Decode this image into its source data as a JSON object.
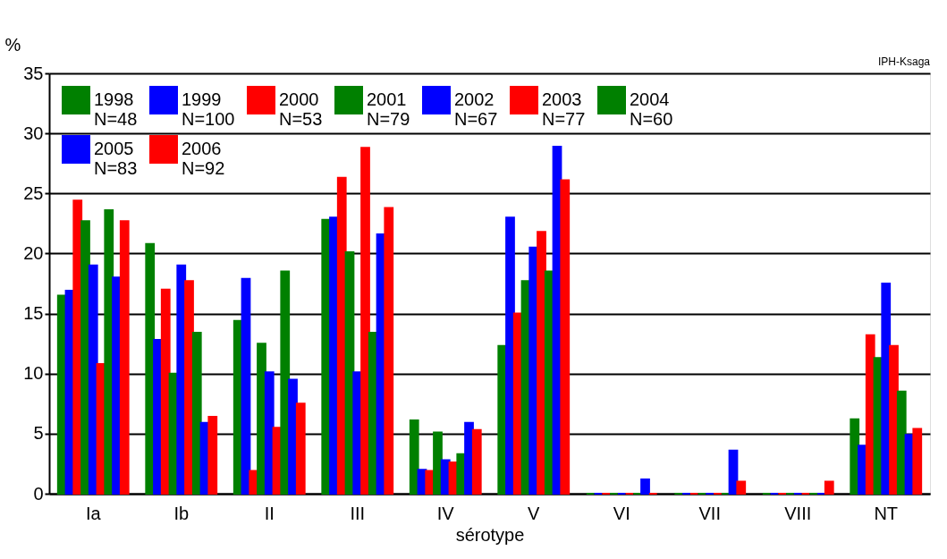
{
  "chart_data": {
    "type": "bar",
    "xlabel": "sérotype",
    "ylabel": "%",
    "categories": [
      "Ia",
      "Ib",
      "II",
      "III",
      "IV",
      "V",
      "VI",
      "VII",
      "VIII",
      "NT"
    ],
    "series": [
      {
        "name": "1998\nN=48",
        "color": "#008000",
        "values": [
          16.5,
          20.8,
          14.4,
          22.8,
          6.1,
          12.3,
          0,
          0,
          0,
          6.2
        ]
      },
      {
        "name": "1999\nN=100",
        "color": "#0000ff",
        "values": [
          16.9,
          12.8,
          17.9,
          23.0,
          2.0,
          23.0,
          0,
          0,
          0,
          4.0
        ]
      },
      {
        "name": "2000\nN=53",
        "color": "#ff0000",
        "values": [
          24.4,
          17.0,
          1.9,
          26.3,
          1.9,
          15.0,
          0,
          0,
          0,
          13.2
        ]
      },
      {
        "name": "2001\nN=79",
        "color": "#008000",
        "values": [
          22.7,
          10.0,
          12.5,
          20.1,
          5.1,
          17.7,
          0,
          0,
          0,
          11.3
        ]
      },
      {
        "name": "2002\nN=67",
        "color": "#0000ff",
        "values": [
          19.0,
          19.0,
          10.1,
          10.1,
          2.8,
          20.5,
          0,
          0,
          0,
          17.5
        ]
      },
      {
        "name": "2003\nN=77",
        "color": "#ff0000",
        "values": [
          10.8,
          17.7,
          5.5,
          28.8,
          2.6,
          21.8,
          0,
          0,
          0,
          12.3
        ]
      },
      {
        "name": "2004\nN=60",
        "color": "#008000",
        "values": [
          23.6,
          13.4,
          18.5,
          13.4,
          3.3,
          18.5,
          0,
          0,
          0,
          8.5
        ]
      },
      {
        "name": "2005\nN=83",
        "color": "#0000ff",
        "values": [
          18.0,
          5.9,
          9.5,
          21.6,
          5.9,
          28.9,
          1.2,
          3.6,
          0,
          4.9
        ]
      },
      {
        "name": "2006\nN=92",
        "color": "#ff0000",
        "values": [
          22.7,
          6.4,
          7.5,
          23.8,
          5.3,
          26.1,
          0,
          1.0,
          1.0,
          5.4
        ]
      }
    ],
    "ylim": [
      0,
      35
    ],
    "yticks": [
      0,
      5,
      10,
      15,
      20,
      25,
      30,
      35
    ],
    "grid": "y",
    "legend": "top left",
    "annotations": [
      "IPH-Ksaga"
    ]
  }
}
